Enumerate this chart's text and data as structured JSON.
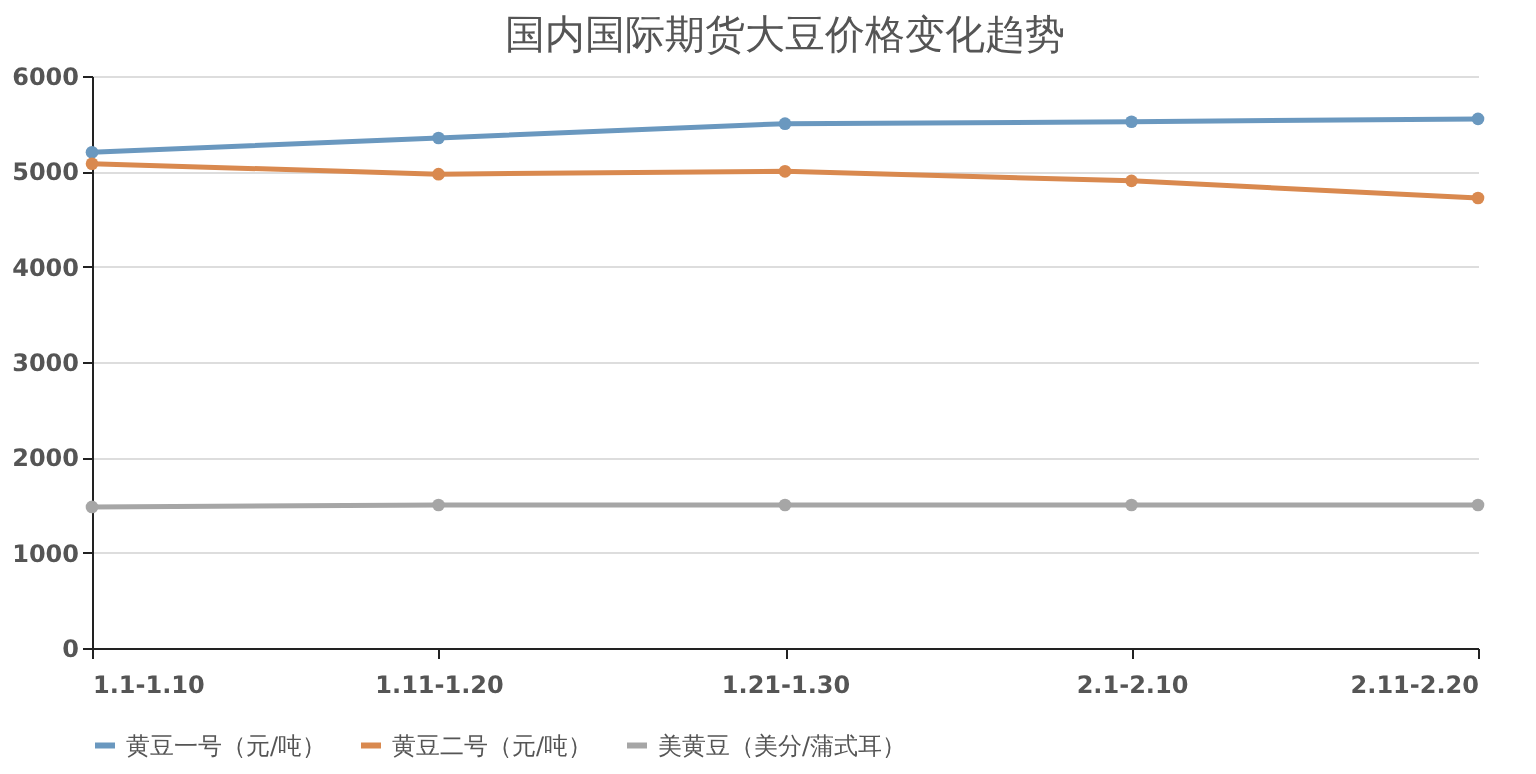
{
  "chart_data": {
    "type": "line",
    "title": "国内国际期货大豆价格变化趋势",
    "categories": [
      "1.1-1.10",
      "1.11-1.20",
      "1.21-1.30",
      "2.1-2.10",
      "2.11-2.20"
    ],
    "series": [
      {
        "name": "黄豆一号（元/吨）",
        "color": "#6a98bf",
        "values": [
          5200,
          5350,
          5500,
          5520,
          5550
        ]
      },
      {
        "name": "黄豆二号（元/吨）",
        "color": "#d9894f",
        "values": [
          5080,
          4970,
          5000,
          4900,
          4720
        ]
      },
      {
        "name": "美黄豆（美分/蒲式耳）",
        "color": "#a6a6a6",
        "values": [
          1480,
          1500,
          1500,
          1500,
          1500
        ]
      }
    ],
    "ylim": [
      0,
      6000
    ],
    "yticks": [
      0,
      1000,
      2000,
      3000,
      4000,
      5000,
      6000
    ],
    "grid": "y",
    "legend": "bottom",
    "marker": "circle",
    "line_style": "solid"
  }
}
